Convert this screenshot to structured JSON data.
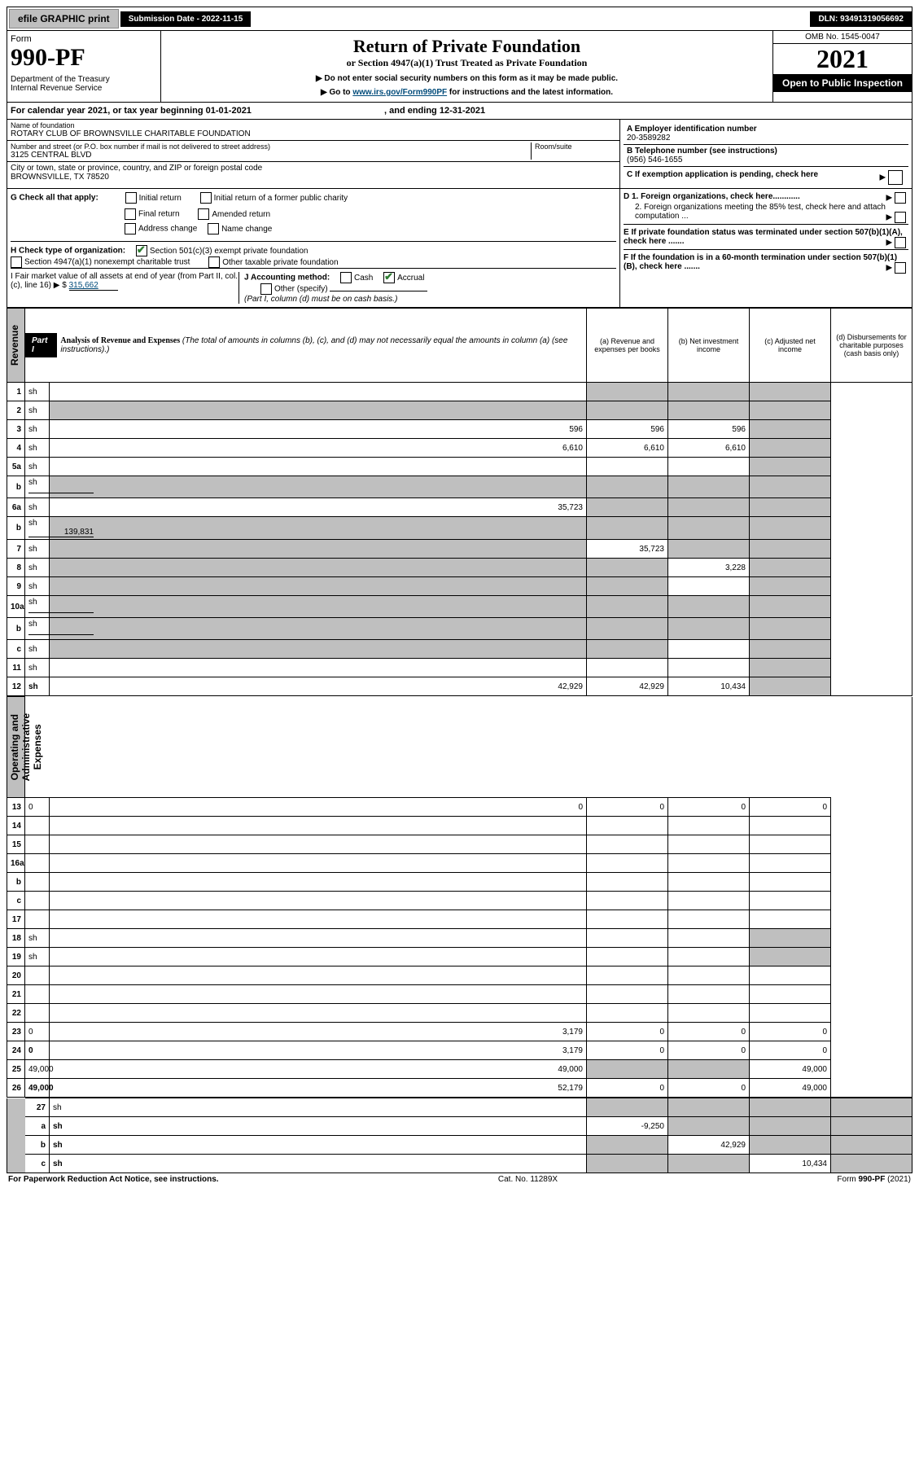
{
  "top": {
    "efile": "efile GRAPHIC print",
    "submission": "Submission Date - 2022-11-15",
    "dln": "DLN: 93491319056692"
  },
  "header": {
    "form": "Form",
    "no": "990-PF",
    "dept": "Department of the Treasury\nInternal Revenue Service",
    "title": "Return of Private Foundation",
    "subtitle": "or Section 4947(a)(1) Trust Treated as Private Foundation",
    "note1": "▶ Do not enter social security numbers on this form as it may be made public.",
    "note2_pre": "▶ Go to ",
    "note2_link": "www.irs.gov/Form990PF",
    "note2_post": " for instructions and the latest information.",
    "omb": "OMB No. 1545-0047",
    "year": "2021",
    "open": "Open to Public Inspection"
  },
  "cal": {
    "line_a": "For calendar year 2021, or tax year beginning ",
    "begin": "01-01-2021",
    "mid": " , and ending ",
    "end": "12-31-2021"
  },
  "id": {
    "name_label": "Name of foundation",
    "name": "ROTARY CLUB OF BROWNSVILLE CHARITABLE FOUNDATION",
    "addr_label": "Number and street (or P.O. box number if mail is not delivered to street address)",
    "addr": "3125 CENTRAL BLVD",
    "room_label": "Room/suite",
    "room": "",
    "city_label": "City or town, state or province, country, and ZIP or foreign postal code",
    "city": "BROWNSVILLE, TX  78520",
    "A_label": "A Employer identification number",
    "A": "20-3589282",
    "B_label": "B Telephone number (see instructions)",
    "B": "(956) 546-1655",
    "C": "C If exemption application is pending, check here"
  },
  "g": {
    "label": "G Check all that apply:",
    "o1": "Initial return",
    "o2": "Initial return of a former public charity",
    "o3": "Final return",
    "o4": "Amended return",
    "o5": "Address change",
    "o6": "Name change",
    "D1": "D 1. Foreign organizations, check here............",
    "D2": "2. Foreign organizations meeting the 85% test, check here and attach computation ...",
    "E": "E If private foundation status was terminated under section 507(b)(1)(A), check here .......",
    "F": "F If the foundation is in a 60-month termination under section 507(b)(1)(B), check here ......."
  },
  "h": {
    "label": "H Check type of organization:",
    "o1": "Section 501(c)(3) exempt private foundation",
    "o2": "Section 4947(a)(1) nonexempt charitable trust",
    "o3": "Other taxable private foundation"
  },
  "i": {
    "label": "I Fair market value of all assets at end of year (from Part II, col. (c), line 16) ▶ $",
    "val": "315,662"
  },
  "j": {
    "label": "J Accounting method:",
    "o1": "Cash",
    "o2": "Accrual",
    "o3": "Other (specify)",
    "note": "(Part I, column (d) must be on cash basis.)"
  },
  "part1": {
    "label": "Part I",
    "title": "Analysis of Revenue and Expenses",
    "note": " (The total of amounts in columns (b), (c), and (d) may not necessarily equal the amounts in column (a) (see instructions).)",
    "cols": {
      "a": "(a) Revenue and expenses per books",
      "b": "(b) Net investment income",
      "c": "(c) Adjusted net income",
      "d": "(d) Disbursements for charitable purposes (cash basis only)"
    }
  },
  "side": {
    "rev": "Revenue",
    "exp": "Operating and Administrative Expenses"
  },
  "rows": [
    {
      "n": "1",
      "d": "sh",
      "a": "",
      "b": "sh",
      "c": "sh"
    },
    {
      "n": "2",
      "d": "sh",
      "a": "sh",
      "b": "sh",
      "c": "sh",
      "onecol": true
    },
    {
      "n": "3",
      "d": "sh",
      "a": "596",
      "b": "596",
      "c": "596"
    },
    {
      "n": "4",
      "d": "sh",
      "a": "6,610",
      "b": "6,610",
      "c": "6,610"
    },
    {
      "n": "5a",
      "d": "sh",
      "a": "",
      "b": "",
      "c": ""
    },
    {
      "n": "b",
      "d": "sh",
      "a": "sh",
      "b": "sh",
      "c": "sh",
      "inline": ""
    },
    {
      "n": "6a",
      "d": "sh",
      "a": "35,723",
      "b": "sh",
      "c": "sh"
    },
    {
      "n": "b",
      "d": "sh",
      "a": "sh",
      "b": "sh",
      "c": "sh",
      "inline": "139,831"
    },
    {
      "n": "7",
      "d": "sh",
      "a": "sh",
      "b": "35,723",
      "c": "sh"
    },
    {
      "n": "8",
      "d": "sh",
      "a": "sh",
      "b": "sh",
      "c": "3,228"
    },
    {
      "n": "9",
      "d": "sh",
      "a": "sh",
      "b": "sh",
      "c": ""
    },
    {
      "n": "10a",
      "d": "sh",
      "a": "sh",
      "b": "sh",
      "c": "sh",
      "inline": ""
    },
    {
      "n": "b",
      "d": "sh",
      "a": "sh",
      "b": "sh",
      "c": "sh",
      "inline": ""
    },
    {
      "n": "c",
      "d": "sh",
      "a": "sh",
      "b": "sh",
      "c": ""
    },
    {
      "n": "11",
      "d": "sh",
      "a": "",
      "b": "",
      "c": ""
    },
    {
      "n": "12",
      "d": "sh",
      "a": "42,929",
      "b": "42,929",
      "c": "10,434",
      "bold": true
    }
  ],
  "exprows": [
    {
      "n": "13",
      "d": "0",
      "a": "0",
      "b": "0",
      "c": "0"
    },
    {
      "n": "14",
      "d": "",
      "a": "",
      "b": "",
      "c": ""
    },
    {
      "n": "15",
      "d": "",
      "a": "",
      "b": "",
      "c": ""
    },
    {
      "n": "16a",
      "d": "",
      "a": "",
      "b": "",
      "c": ""
    },
    {
      "n": "b",
      "d": "",
      "a": "",
      "b": "",
      "c": ""
    },
    {
      "n": "c",
      "d": "",
      "a": "",
      "b": "",
      "c": ""
    },
    {
      "n": "17",
      "d": "",
      "a": "",
      "b": "",
      "c": ""
    },
    {
      "n": "18",
      "d": "sh",
      "a": "",
      "b": "",
      "c": ""
    },
    {
      "n": "19",
      "d": "sh",
      "a": "",
      "b": "",
      "c": ""
    },
    {
      "n": "20",
      "d": "",
      "a": "",
      "b": "",
      "c": ""
    },
    {
      "n": "21",
      "d": "",
      "a": "",
      "b": "",
      "c": ""
    },
    {
      "n": "22",
      "d": "",
      "a": "",
      "b": "",
      "c": ""
    },
    {
      "n": "23",
      "d": "0",
      "a": "3,179",
      "b": "0",
      "c": "0"
    },
    {
      "n": "24",
      "d": "0",
      "a": "3,179",
      "b": "0",
      "c": "0",
      "bold": true
    },
    {
      "n": "25",
      "d": "49,000",
      "a": "49,000",
      "b": "sh",
      "c": "sh"
    },
    {
      "n": "26",
      "d": "49,000",
      "a": "52,179",
      "b": "0",
      "c": "0",
      "bold": true
    }
  ],
  "bottom": [
    {
      "n": "27",
      "d": "sh",
      "a": "sh",
      "b": "sh",
      "c": "sh"
    },
    {
      "n": "a",
      "d": "sh",
      "a": "-9,250",
      "b": "sh",
      "c": "sh",
      "bold": true
    },
    {
      "n": "b",
      "d": "sh",
      "a": "sh",
      "b": "42,929",
      "c": "sh",
      "bold": true
    },
    {
      "n": "c",
      "d": "sh",
      "a": "sh",
      "b": "sh",
      "c": "10,434",
      "bold": true
    }
  ],
  "foot": {
    "left": "For Paperwork Reduction Act Notice, see instructions.",
    "mid": "Cat. No. 11289X",
    "right": "Form 990-PF (2021)"
  }
}
